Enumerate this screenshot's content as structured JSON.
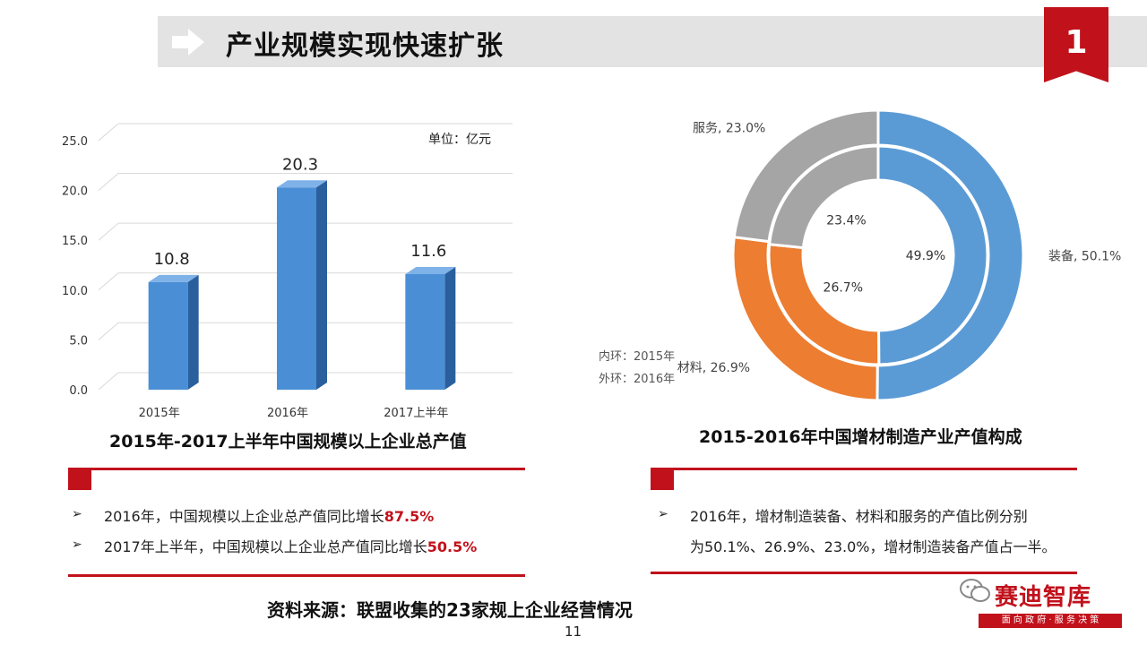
{
  "header": {
    "title": "产业规模实现快速扩张",
    "page_badge": "1"
  },
  "left_chart": {
    "title": "2015年-2017上半年中国规模以上企业总产值",
    "unit": "单位：亿元"
  },
  "right_chart": {
    "title": "2015-2016年中国增材制造产业产值构成",
    "ring_note_inner": "内环：2015年",
    "ring_note_outer": "外环：2016年"
  },
  "chart_data": [
    {
      "type": "bar",
      "title": "2015年-2017上半年中国规模以上企业总产值",
      "categories": [
        "2015年",
        "2016年",
        "2017上半年"
      ],
      "values": [
        10.8,
        20.3,
        11.6
      ],
      "data_labels": [
        "10.8",
        "20.3",
        "11.6"
      ],
      "ylim": [
        0,
        25
      ],
      "yticks": [
        0,
        5,
        10,
        15,
        20,
        25
      ],
      "ytick_labels": [
        "0.0",
        "5.0",
        "10.0",
        "15.0",
        "20.0",
        "25.0"
      ],
      "ylabel": "单位：亿元",
      "grid": true,
      "color": "#4a8fd6"
    },
    {
      "type": "pie",
      "subtype": "donut",
      "title": "2015-2016年中国增材制造产业产值构成",
      "categories": [
        "装备",
        "材料",
        "服务"
      ],
      "colors": [
        "#5b9bd5",
        "#ed7d31",
        "#a5a5a5"
      ],
      "series": [
        {
          "name": "外环：2016年",
          "values": [
            50.1,
            26.9,
            23.0
          ],
          "labels": [
            "装备, 50.1%",
            "材料, 26.9%",
            "服务, 23.0%"
          ]
        },
        {
          "name": "内环：2015年",
          "values": [
            49.9,
            26.7,
            23.4
          ],
          "labels": [
            "49.9%",
            "26.7%",
            "23.4%"
          ]
        }
      ]
    }
  ],
  "left_panel": {
    "bullets": [
      {
        "text": "2016年，中国规模以上企业总产值同比增长",
        "highlight": "87.5%"
      },
      {
        "text": "2017年上半年，中国规模以上企业总产值同比增长",
        "highlight": "50.5%"
      }
    ]
  },
  "right_panel": {
    "line1": "2016年，增材制造装备、材料和服务的产值比例分别",
    "line2": "为50.1%、26.9%、23.0%，增材制造装备产值占一半。"
  },
  "footer": {
    "source": "资料来源：联盟收集的23家规上企业经营情况",
    "page_number": "11",
    "brand_name": "赛迪智库",
    "brand_slogan": "面 向 政 府 · 服 务 决 策"
  },
  "icons": {
    "header_arrow": "arrow-right-icon",
    "bullet": "arrow-bullet-icon",
    "wechat": "wechat-icon"
  },
  "colors": {
    "accent": "#c1121c",
    "bar": "#4a8fd6"
  }
}
